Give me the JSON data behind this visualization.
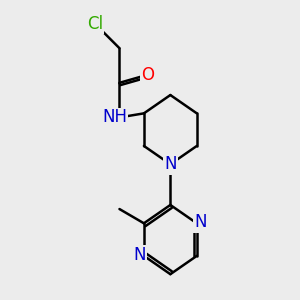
{
  "background_color": "#ececec",
  "bond_color": "#000000",
  "bond_width": 1.8,
  "atom_colors": {
    "Cl": "#33aa00",
    "O": "#ff0000",
    "N": "#0000cc"
  },
  "font_size": 12
}
